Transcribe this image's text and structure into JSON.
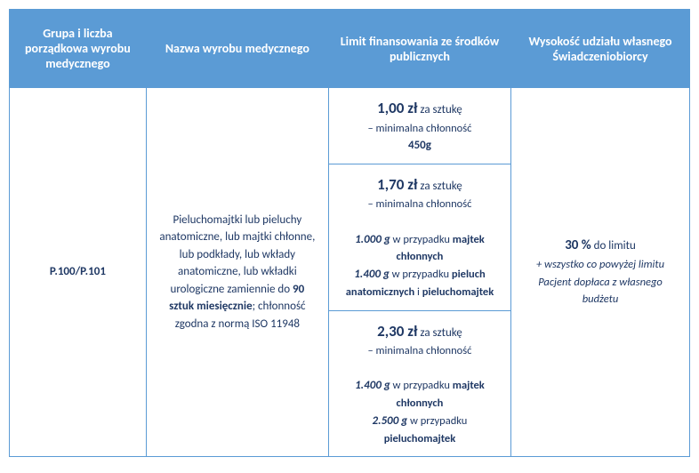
{
  "headers": {
    "col1": "Grupa i liczba porządkowa wyrobu medycznego",
    "col2": "Nazwa wyrobu medycznego",
    "col3": "Limit finansowania ze środków publicznych",
    "col4": "Wysokość udziału własnego Świadczeniobiorcy"
  },
  "code": "P.100/P.101",
  "description": {
    "pre": "Pieluchomajtki lub pieluchy anatomiczne, lub majtki chłonne, lub podkłady, lub wkłady anatomiczne, lub wkładki urologiczne zamiennie do ",
    "bold1": "90 sztuk miesięcznie",
    "mid": "; chłonność zgodna z normą ISO 11948"
  },
  "limits": [
    {
      "price": "1,00 zł",
      "per": " za sztukę",
      "line2": "– minimalna chłonność",
      "weight1": "450g"
    },
    {
      "price": "1,70 zł",
      "per": " za sztukę",
      "line2": "– minimalna chłonność",
      "w1": "1.000 g",
      "c1a": " w przypadku ",
      "c1b": "majtek chłonnych",
      "w2": "1.400 g",
      "c2a": " w przypadku ",
      "c2b": "pieluch anatomicznych",
      "c2c": " i ",
      "c2d": "pieluchomajtek"
    },
    {
      "price": "2,30 zł",
      "per": " za sztukę",
      "line2": "– minimalna chłonność",
      "w1": "1.400 g",
      "c1a": " w przypadku ",
      "c1b": "majtek chłonnych",
      "w2": "2.500 g",
      "c2a": " w przypadku ",
      "c2b": "pieluchomajtek"
    }
  ],
  "share": {
    "main_pct": "30 %",
    "main_rest": " do limitu",
    "sub": "+ wszystko co powyżej limitu Pacjent dopłaca z własnego budżetu"
  },
  "colors": {
    "header_bg": "#5b9bd5",
    "header_text": "#ffffff",
    "border": "#5b9bd5",
    "body_text": "#1f3864"
  }
}
